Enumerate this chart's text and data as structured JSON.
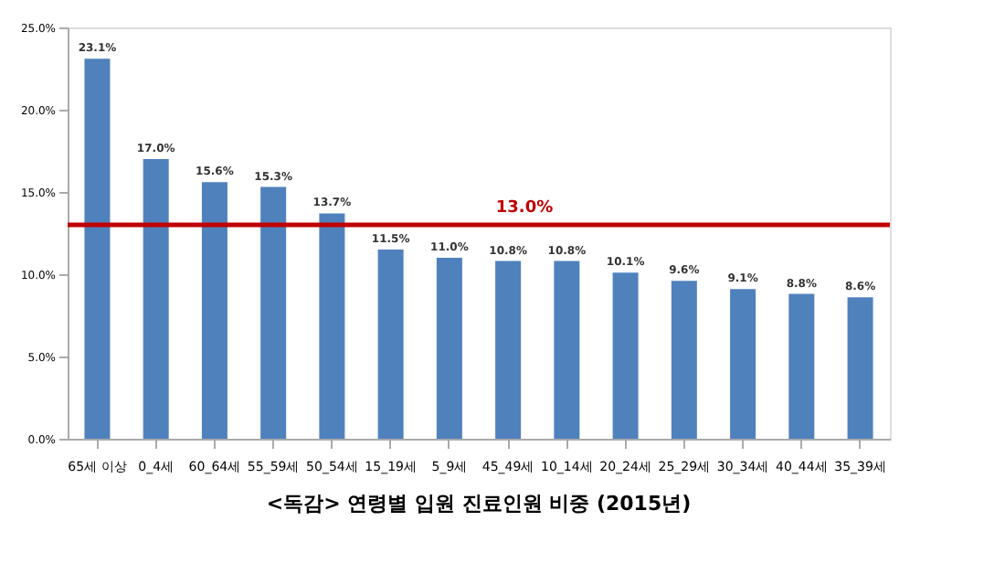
{
  "chart_data": {
    "type": "bar",
    "title": "<독감> 연령별 입원 진료인원 비중 (2015년)",
    "categories": [
      "65세 이상",
      "0_4세",
      "60_64세",
      "55_59세",
      "50_54세",
      "15_19세",
      "5_9세",
      "45_49세",
      "10_14세",
      "20_24세",
      "25_29세",
      "30_34세",
      "40_44세",
      "35_39세"
    ],
    "values": [
      23.1,
      17.0,
      15.6,
      15.3,
      13.7,
      11.5,
      11.0,
      10.8,
      10.8,
      10.1,
      9.6,
      9.1,
      8.8,
      8.6
    ],
    "value_labels": [
      "23.1%",
      "17.0%",
      "15.6%",
      "15.3%",
      "13.7%",
      "11.5%",
      "11.0%",
      "10.8%",
      "10.8%",
      "10.1%",
      "9.6%",
      "9.1%",
      "8.8%",
      "8.6%"
    ],
    "color": "#4f81bd",
    "ylim": [
      0,
      25
    ],
    "yticks": [
      {
        "value": 0,
        "label": "0.0%"
      },
      {
        "value": 5,
        "label": "5.0%"
      },
      {
        "value": 10,
        "label": "10.0%"
      },
      {
        "value": 15,
        "label": "15.0%"
      },
      {
        "value": 20,
        "label": "20.0%"
      },
      {
        "value": 25,
        "label": "25.0%"
      }
    ],
    "ref_lines": [
      {
        "axis": "y",
        "value": 13.0,
        "label": "13.0%",
        "color": "#c00000"
      }
    ],
    "grid": false
  }
}
